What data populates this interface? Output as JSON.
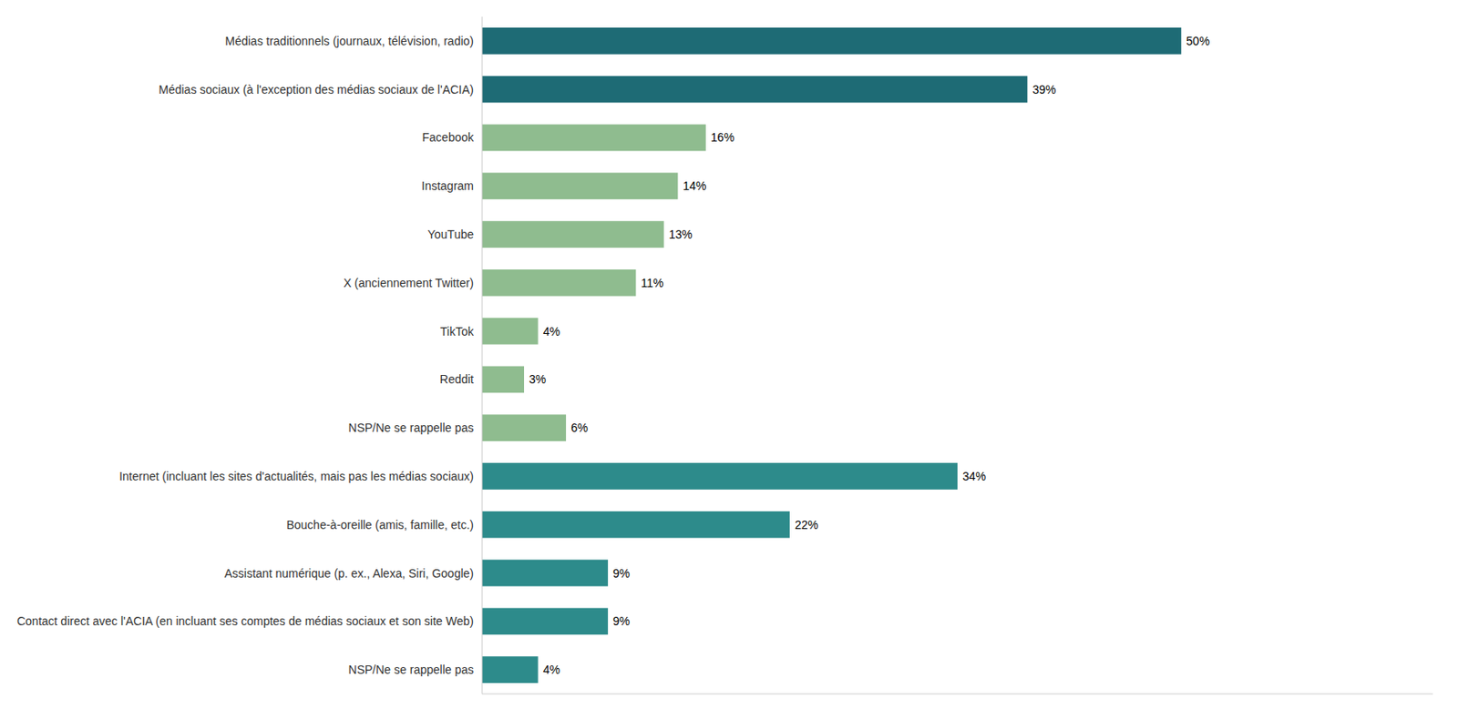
{
  "chart_data": {
    "type": "bar",
    "orientation": "horizontal",
    "categories": [
      "NSP/Ne se rappelle pas",
      "Contact direct avec l'ACIA (en incluant ses comptes de médias sociaux et son site Web)",
      "Assistant numérique (p. ex., Alexa, Siri, Google)",
      "Bouche-à-oreille (amis, famille, etc.)",
      "Internet (incluant les sites d'actualités, mais pas les médias sociaux)",
      "NSP/Ne se rappelle pas",
      "Reddit",
      "TikTok",
      "X (anciennement Twitter)",
      "YouTube",
      "Instagram",
      "Facebook",
      "Médias sociaux (à l'exception des médias sociaux de l'ACIA)",
      "Médias traditionnels (journaux, télévision, radio)"
    ],
    "values": [
      4,
      9,
      9,
      22,
      34,
      6,
      3,
      4,
      11,
      13,
      14,
      16,
      39,
      50
    ],
    "value_labels": [
      "4%",
      "9%",
      "9%",
      "22%",
      "34%",
      "6%",
      "3%",
      "4%",
      "11%",
      "13%",
      "14%",
      "16%",
      "39%",
      "50%"
    ],
    "colors": [
      "#2d8b8b",
      "#2d8b8b",
      "#2d8b8b",
      "#2d8b8b",
      "#2d8b8b",
      "#8fbc8f",
      "#8fbc8f",
      "#8fbc8f",
      "#8fbc8f",
      "#8fbc8f",
      "#8fbc8f",
      "#8fbc8f",
      "#1e6b75",
      "#1e6b75"
    ],
    "xlim": [
      0,
      68
    ],
    "data_labels": true,
    "tick_labels": "y",
    "grid": false
  }
}
